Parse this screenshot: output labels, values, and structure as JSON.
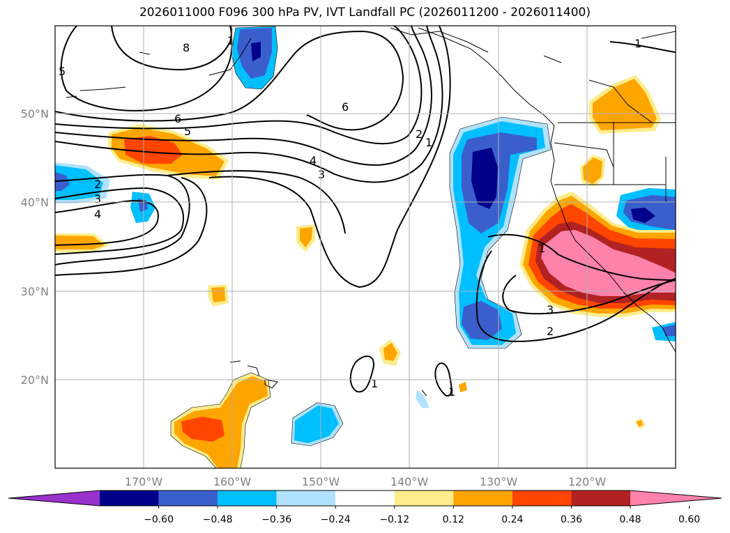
{
  "chart_data": {
    "type": "heatmap",
    "title": "2026011000 F096 300 hPa PV, IVT Landfall PC (2026011200 - 2026011400)",
    "x_ticks": [
      "170°W",
      "160°W",
      "150°W",
      "140°W",
      "130°W",
      "120°W"
    ],
    "y_ticks": [
      "50°N",
      "40°N",
      "30°N",
      "20°N"
    ],
    "lon_range": [
      -180,
      -110
    ],
    "lat_range": [
      10,
      60
    ],
    "grid": true,
    "contour_labels": [
      "8",
      "5",
      "6",
      "5",
      "6",
      "4",
      "3",
      "2",
      "1",
      "1",
      "2",
      "3",
      "4",
      "1",
      "3",
      "2",
      "1",
      "1",
      "1"
    ],
    "colorbar": {
      "ticks": [
        "−0.60",
        "−0.48",
        "−0.36",
        "−0.24",
        "−0.12",
        "0.12",
        "0.24",
        "0.36",
        "0.48",
        "0.60"
      ],
      "colors": [
        "#9932cc",
        "#00008b",
        "#3a5fcd",
        "#00bfff",
        "#b0e2ff",
        "#ffffff",
        "#ffec8b",
        "#ffa500",
        "#ff4500",
        "#b22222",
        "#ff82ab"
      ],
      "extend": "both"
    }
  }
}
